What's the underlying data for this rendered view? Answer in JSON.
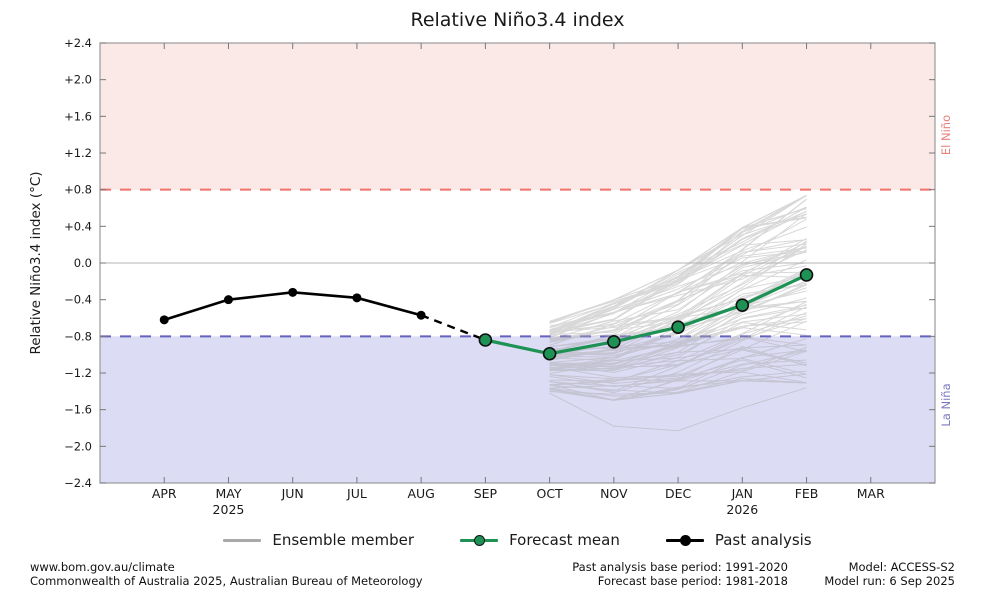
{
  "colors": {
    "forecast_green": "#1e9155",
    "past_black": "#000000",
    "ensemble_gray": "#a9a9a9",
    "el_nino_fill": "#fbe9e7",
    "la_nina_fill": "#dddcf5",
    "el_nino_line": "#ef726b",
    "la_nina_line": "#6362bd",
    "el_nino_text": "#e8827b",
    "la_nina_text": "#7b7abf",
    "zero_line": "#b3b3b3",
    "axis_border": "#999999",
    "tick_color": "#777777"
  },
  "chart_data": {
    "type": "line",
    "title": "Relative Niño3.4 index",
    "ylabel": "Relative Niño3.4 index (°C)",
    "ylim": [
      -2.4,
      2.4
    ],
    "ytick_values": [
      2.4,
      2.0,
      1.6,
      1.2,
      0.8,
      0.4,
      0.0,
      -0.4,
      -0.8,
      -1.2,
      -1.6,
      -2.0,
      -2.4
    ],
    "ytick_labels": [
      "+2.4",
      "+2.0",
      "+1.6",
      "+1.2",
      "+0.8",
      "+0.4",
      "0.0",
      "−0.4",
      "−0.8",
      "−1.2",
      "−1.6",
      "−2.0",
      "−2.4"
    ],
    "categories": [
      "APR",
      "MAY",
      "JUN",
      "JUL",
      "AUG",
      "SEP",
      "OCT",
      "NOV",
      "DEC",
      "JAN",
      "FEB",
      "MAR"
    ],
    "year_labels": [
      {
        "month": "MAY",
        "label": "2025"
      },
      {
        "month": "JAN",
        "label": "2026"
      }
    ],
    "thresholds": {
      "el_nino": 0.8,
      "la_nina": -0.8
    },
    "band_labels": {
      "el_nino": "El Niño",
      "la_nina": "La Niña"
    },
    "grid": "zero-line-only",
    "legend_position": "bottom-center",
    "series": [
      {
        "name": "Past analysis",
        "style": "solid-line-with-markers",
        "x": [
          "APR",
          "MAY",
          "JUN",
          "JUL",
          "AUG"
        ],
        "values": [
          -0.62,
          -0.4,
          -0.32,
          -0.38,
          -0.57
        ]
      },
      {
        "name": "Past-to-forecast connector",
        "style": "dashed-line",
        "x": [
          "AUG",
          "SEP"
        ],
        "values": [
          -0.57,
          -0.84
        ]
      },
      {
        "name": "Forecast mean",
        "style": "solid-line-with-markers",
        "x": [
          "SEP",
          "OCT",
          "NOV",
          "DEC",
          "JAN",
          "FEB"
        ],
        "values": [
          -0.84,
          -0.99,
          -0.86,
          -0.7,
          -0.46,
          -0.13
        ]
      },
      {
        "name": "Ensemble member",
        "style": "thin-gray-lines",
        "count": 99,
        "x": [
          "OCT",
          "NOV",
          "DEC",
          "JAN",
          "FEB"
        ],
        "envelope_min": [
          -1.42,
          -1.52,
          -1.45,
          -1.32,
          -1.35
        ],
        "envelope_max": [
          -0.62,
          -0.38,
          -0.05,
          0.42,
          0.78
        ],
        "outlier": [
          -1.42,
          -1.78,
          -1.83,
          -1.58,
          -1.36
        ]
      }
    ]
  },
  "legend": {
    "items": [
      {
        "key": "ensemble",
        "label": "Ensemble member"
      },
      {
        "key": "forecast",
        "label": "Forecast mean"
      },
      {
        "key": "past",
        "label": "Past analysis"
      }
    ]
  },
  "footer": {
    "left_line1": "www.bom.gov.au/climate",
    "left_line2": "Commonwealth of Australia 2025, Australian Bureau of Meteorology",
    "center_line1": "Past analysis base period: 1991-2020",
    "center_line2": "Forecast base period: 1981-2018",
    "right_line1": "Model: ACCESS-S2",
    "right_line2": "Model run: 6 Sep 2025"
  }
}
